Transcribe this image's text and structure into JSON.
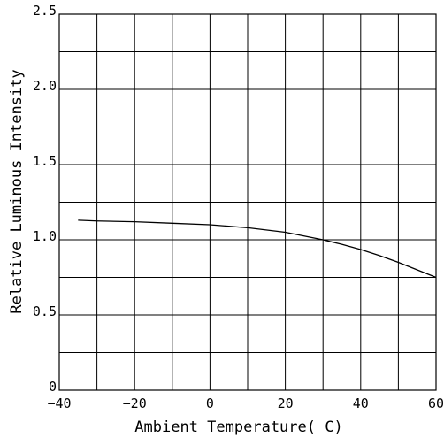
{
  "chart_data": {
    "type": "line",
    "title": "",
    "xlabel": "Ambient Temperature( C)",
    "ylabel": "Relative Luminous Intensity",
    "xlim": [
      -40,
      60
    ],
    "ylim": [
      0,
      2.5
    ],
    "x_ticks": [
      -40,
      -20,
      0,
      20,
      40,
      60
    ],
    "x_tick_labels": [
      "−40",
      "−20",
      "0",
      "20",
      "40",
      "60"
    ],
    "y_ticks": [
      0,
      0.5,
      1.0,
      1.5,
      2.0,
      2.5
    ],
    "y_tick_labels": [
      "0",
      "0.5",
      "1.0",
      "1.5",
      "2.0",
      "2.5"
    ],
    "x_grid_step": 10,
    "y_grid_step": 0.25,
    "grid": true,
    "legend": "none",
    "series": [
      {
        "x": [
          -35,
          -30,
          -20,
          -10,
          0,
          10,
          20,
          25,
          30,
          35,
          40,
          45,
          50,
          55,
          60
        ],
        "y": [
          1.13,
          1.125,
          1.12,
          1.11,
          1.1,
          1.08,
          1.05,
          1.025,
          1.0,
          0.97,
          0.935,
          0.895,
          0.85,
          0.8,
          0.75
        ]
      }
    ]
  }
}
